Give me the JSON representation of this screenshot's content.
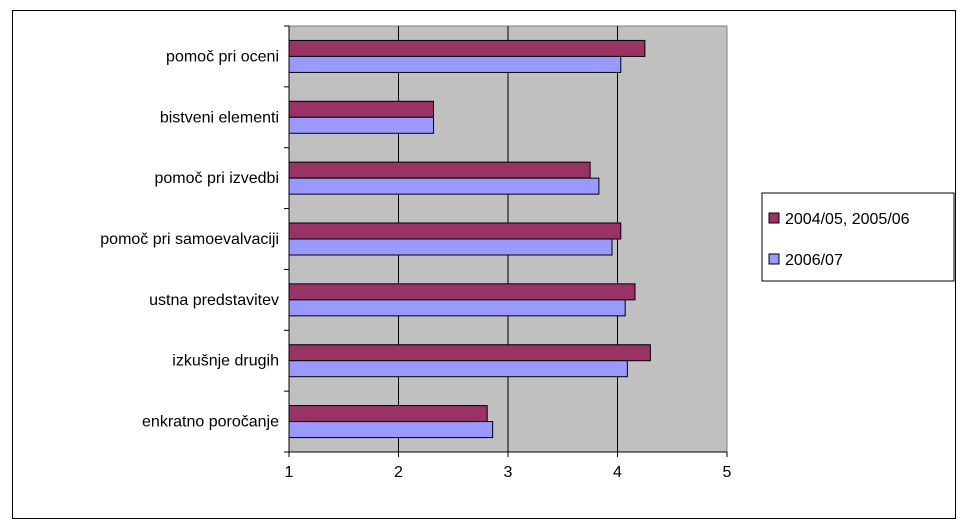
{
  "chart_data": {
    "type": "bar",
    "orientation": "horizontal",
    "categories": [
      "pomoč pri oceni",
      "bistveni elementi",
      "pomoč pri izvedbi",
      "pomoč pri samoevalvaciji",
      "ustna predstavitev",
      "izkušnje drugih",
      "enkratno poročanje"
    ],
    "series": [
      {
        "name": "2004/05, 2005/06",
        "color": "#993366",
        "values": [
          4.25,
          2.32,
          3.75,
          4.03,
          4.16,
          4.3,
          2.81
        ]
      },
      {
        "name": "2006/07",
        "color": "#9999ff",
        "values": [
          4.03,
          2.32,
          3.83,
          3.95,
          4.07,
          4.09,
          2.86
        ]
      }
    ],
    "xlim": [
      1,
      5
    ],
    "xticks": [
      "1",
      "2",
      "3",
      "4",
      "5"
    ],
    "grid": true,
    "plot_background": "#c0c0c0",
    "legend_position": "right"
  }
}
